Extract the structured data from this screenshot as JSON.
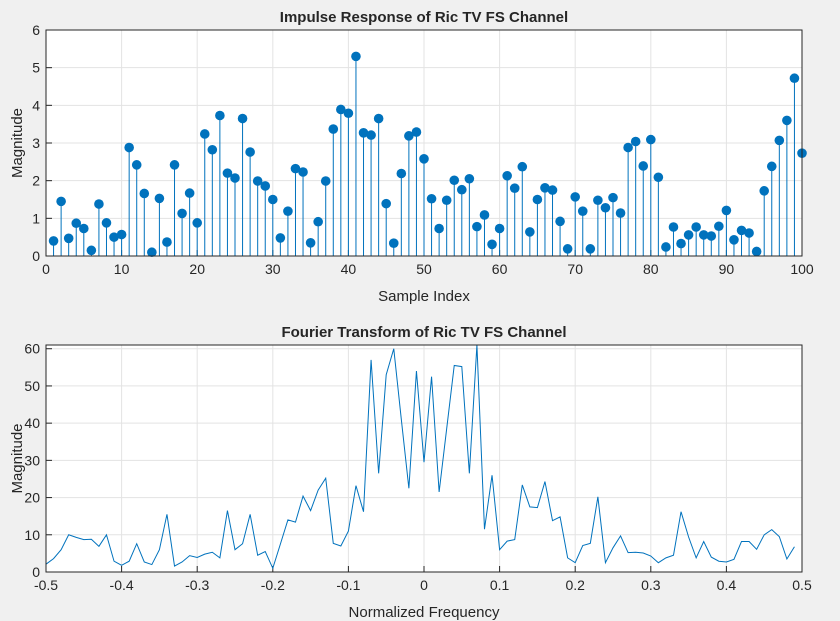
{
  "colors": {
    "figure_bg": "#f0f0f0",
    "axes_bg": "#ffffff",
    "grid": "#e3e3e3",
    "axis": "#262626",
    "series": "#0072bd"
  },
  "chart_data": [
    {
      "type": "stem",
      "title": "Impulse Response of Ric TV FS Channel",
      "xlabel": "Sample Index",
      "ylabel": "Magnitude",
      "xlim": [
        0,
        100
      ],
      "ylim": [
        0,
        6
      ],
      "xticks": [
        "0",
        "10",
        "20",
        "30",
        "40",
        "50",
        "60",
        "70",
        "80",
        "90",
        "100"
      ],
      "yticks": [
        "0",
        "1",
        "2",
        "3",
        "4",
        "5",
        "6"
      ],
      "grid": true,
      "x_start": 1,
      "values": [
        0.4,
        1.45,
        0.47,
        0.87,
        0.73,
        0.15,
        1.38,
        0.88,
        0.5,
        0.57,
        2.88,
        2.42,
        1.66,
        0.1,
        1.53,
        0.37,
        2.42,
        1.13,
        1.67,
        0.88,
        3.24,
        2.82,
        3.73,
        2.2,
        2.07,
        3.65,
        2.76,
        1.99,
        1.86,
        1.5,
        0.48,
        1.19,
        2.32,
        2.23,
        0.35,
        0.91,
        1.99,
        3.37,
        3.89,
        3.79,
        5.3,
        3.27,
        3.21,
        3.65,
        1.39,
        0.34,
        2.19,
        3.19,
        3.29,
        2.58,
        1.52,
        0.73,
        1.48,
        2.01,
        1.76,
        2.05,
        0.78,
        1.09,
        0.31,
        0.73,
        2.13,
        1.8,
        2.37,
        0.64,
        1.5,
        1.81,
        1.75,
        0.92,
        0.19,
        1.57,
        1.19,
        0.19,
        1.48,
        1.28,
        1.55,
        1.14,
        2.88,
        3.04,
        2.39,
        3.09,
        2.09,
        0.24,
        0.77,
        0.33,
        0.56,
        0.77,
        0.56,
        0.53,
        0.79,
        1.21,
        0.43,
        0.68,
        0.61,
        0.12,
        1.73,
        2.38,
        3.07,
        3.6,
        4.72,
        2.73
      ]
    },
    {
      "type": "line",
      "title": "Fourier Transform of Ric TV FS Channel",
      "xlabel": "Normalized Frequency",
      "ylabel": "Magnitude",
      "xlim": [
        -0.5,
        0.5
      ],
      "ylim": [
        0,
        61
      ],
      "xticks": [
        "-0.5",
        "-0.4",
        "-0.3",
        "-0.2",
        "-0.1",
        "0",
        "0.1",
        "0.2",
        "0.3",
        "0.4",
        "0.5"
      ],
      "yticks": [
        "0",
        "10",
        "20",
        "30",
        "40",
        "50",
        "60"
      ],
      "grid": true,
      "x_start": -0.5,
      "x_step": 0.01,
      "values": [
        2.1,
        3.6,
        6,
        10,
        9.3,
        8.7,
        8.8,
        6.9,
        10,
        2.9,
        1.8,
        2.9,
        7.6,
        2.7,
        2,
        6,
        15.5,
        1.6,
        2.7,
        4.4,
        3.9,
        4.8,
        5.3,
        3.8,
        16.5,
        6,
        7.6,
        15.5,
        4.5,
        5.5,
        1,
        7.5,
        14,
        13.4,
        20.4,
        16.5,
        22,
        25.2,
        7.7,
        7,
        11,
        23.2,
        16.2,
        57,
        26.5,
        53,
        60,
        41,
        22.5,
        54,
        29.5,
        52.5,
        21.5,
        38.5,
        55.5,
        55.2,
        26.5,
        61,
        11.5,
        26,
        6,
        8.3,
        8.7,
        23.4,
        17.5,
        17.3,
        24.3,
        13.8,
        14.8,
        3.8,
        2.5,
        7.1,
        7.7,
        20.2,
        2.5,
        6.5,
        9.7,
        5.2,
        5.3,
        5.1,
        4.3,
        2.5,
        3.8,
        4.5,
        16.2,
        9.4,
        3.8,
        8.2,
        4,
        2.9,
        2.7,
        3.4,
        8.2,
        8.2,
        6.1,
        10,
        11.4,
        9.5,
        3.5,
        6.8
      ]
    }
  ]
}
